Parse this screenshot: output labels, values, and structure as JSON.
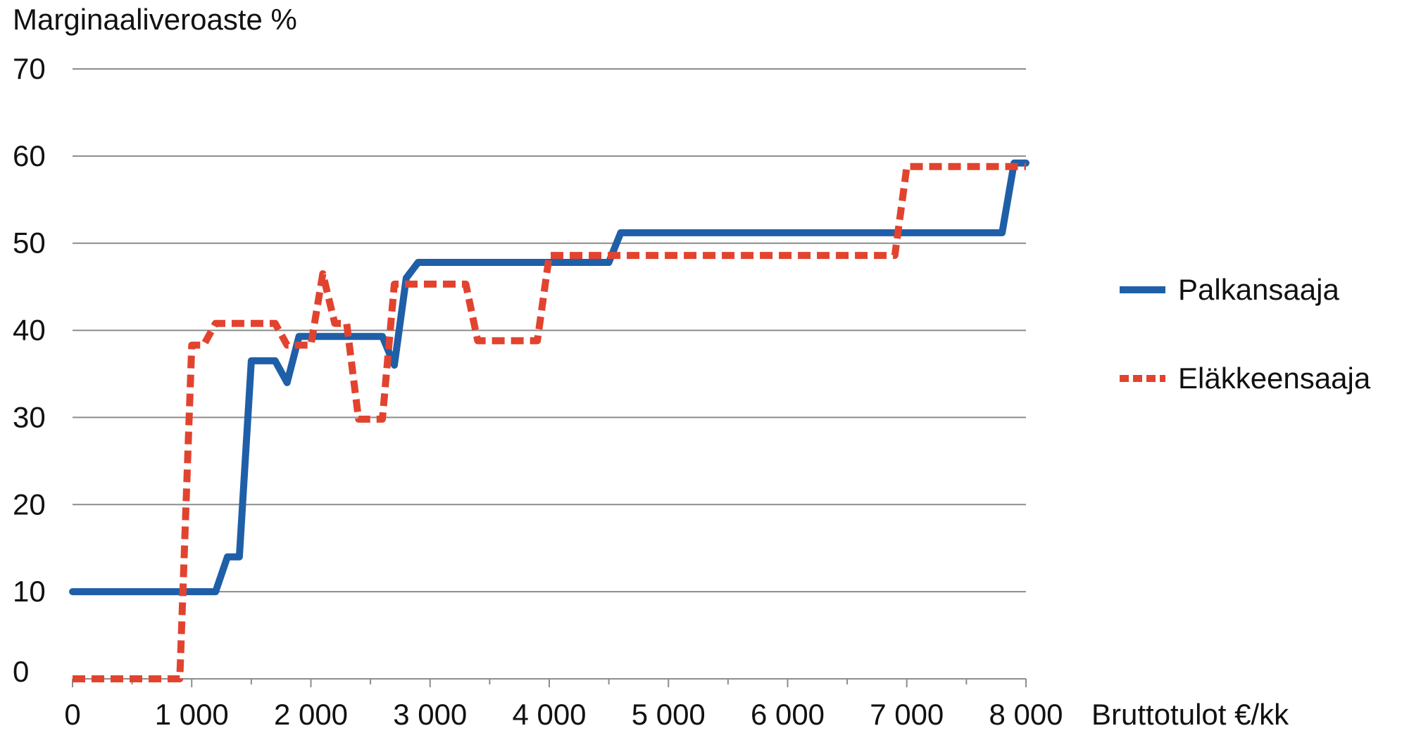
{
  "chart_data": {
    "type": "line",
    "ylabel": "Marginaaliveroaste %",
    "xlabel": "Bruttotulot €/kk",
    "ylim": [
      0,
      70
    ],
    "xlim": [
      0,
      8000
    ],
    "y_ticks": [
      0,
      10,
      20,
      30,
      40,
      50,
      60,
      70
    ],
    "y_tick_labels": [
      "0",
      "10",
      "20",
      "30",
      "40",
      "50",
      "60",
      "70"
    ],
    "x_ticks": [
      0,
      1000,
      2000,
      3000,
      4000,
      5000,
      6000,
      7000,
      8000
    ],
    "x_tick_labels": [
      "0",
      "1 000",
      "2 000",
      "3 000",
      "4 000",
      "5 000",
      "6 000",
      "7 000",
      "8 000"
    ],
    "grid": "horizontal",
    "legend_position": "right",
    "series": [
      {
        "name": "Palkansaaja",
        "color": "#1f5fa8",
        "style": "solid",
        "points": [
          [
            0,
            10
          ],
          [
            1200,
            10
          ],
          [
            1300,
            14
          ],
          [
            1400,
            14
          ],
          [
            1500,
            36.5
          ],
          [
            1700,
            36.5
          ],
          [
            1800,
            34
          ],
          [
            1900,
            39.3
          ],
          [
            2600,
            39.3
          ],
          [
            2700,
            36
          ],
          [
            2800,
            46
          ],
          [
            2900,
            47.8
          ],
          [
            4500,
            47.8
          ],
          [
            4600,
            51.2
          ],
          [
            7800,
            51.2
          ],
          [
            7900,
            59.2
          ],
          [
            8000,
            59.2
          ]
        ]
      },
      {
        "name": "Eläkkeensaaja",
        "color": "#e2432f",
        "style": "dashed",
        "points": [
          [
            0,
            0
          ],
          [
            900,
            0
          ],
          [
            1000,
            38.3
          ],
          [
            1100,
            38.3
          ],
          [
            1200,
            40.8
          ],
          [
            1700,
            40.8
          ],
          [
            1800,
            38.3
          ],
          [
            1900,
            38.3
          ],
          [
            2000,
            38.3
          ],
          [
            2100,
            46.5
          ],
          [
            2200,
            40.8
          ],
          [
            2300,
            40.8
          ],
          [
            2400,
            29.8
          ],
          [
            2600,
            29.8
          ],
          [
            2700,
            45.3
          ],
          [
            3300,
            45.3
          ],
          [
            3400,
            38.8
          ],
          [
            3900,
            38.8
          ],
          [
            4000,
            48.6
          ],
          [
            6900,
            48.6
          ],
          [
            7000,
            58.8
          ],
          [
            8000,
            58.8
          ]
        ]
      }
    ]
  }
}
